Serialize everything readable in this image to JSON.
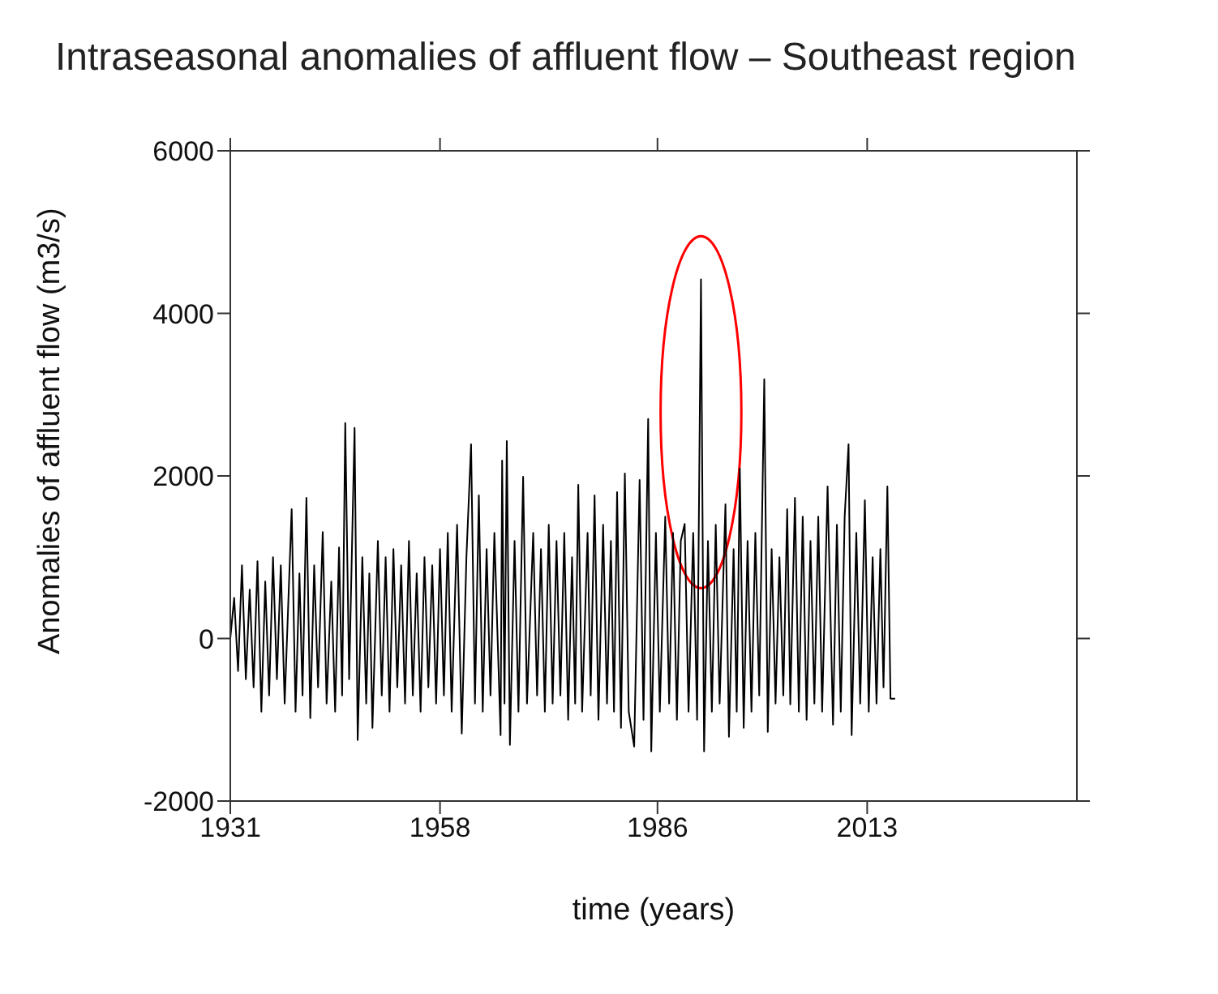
{
  "chart_data": {
    "type": "line",
    "title": "Intraseasonal anomalies of affluent flow – Southeast region",
    "xlabel": "time (years)",
    "ylabel": "Anomalies of affluent flow (m3/s)",
    "xlim": [
      1931,
      2040
    ],
    "xticks": [
      1931,
      1958,
      1986,
      2013
    ],
    "ylim": [
      -2000,
      6000
    ],
    "yticks": [
      -2000,
      0,
      2000,
      4000,
      6000
    ],
    "series": [
      {
        "color": "#000000",
        "x": [
          1931.0,
          1931.5,
          1932.0,
          1932.5,
          1933.0,
          1933.5,
          1934.0,
          1934.5,
          1935.0,
          1935.5,
          1936.0,
          1936.5,
          1937.0,
          1937.5,
          1938.0,
          1938.9,
          1939.4,
          1939.9,
          1940.3,
          1940.8,
          1941.3,
          1941.8,
          1942.3,
          1942.9,
          1943.4,
          1944.0,
          1944.5,
          1945.0,
          1945.4,
          1945.8,
          1946.3,
          1947.0,
          1947.4,
          1948.0,
          1948.5,
          1948.9,
          1949.3,
          1950.0,
          1950.5,
          1951.0,
          1951.5,
          1952.0,
          1952.5,
          1953.0,
          1953.5,
          1954.0,
          1954.5,
          1955.0,
          1955.5,
          1956.0,
          1956.5,
          1957.0,
          1957.5,
          1958.0,
          1958.5,
          1959.0,
          1959.5,
          1960.2,
          1960.8,
          1961.4,
          1962.0,
          1962.5,
          1963.0,
          1963.5,
          1964.0,
          1964.5,
          1965.0,
          1965.8,
          1966.0,
          1966.3,
          1966.6,
          1967.0,
          1967.6,
          1968.1,
          1968.7,
          1969.2,
          1970.0,
          1970.5,
          1971.0,
          1971.5,
          1972.0,
          1972.5,
          1973.0,
          1973.5,
          1974.0,
          1974.5,
          1975.0,
          1975.4,
          1975.8,
          1976.3,
          1977.0,
          1977.4,
          1977.9,
          1978.4,
          1979.0,
          1979.5,
          1980.0,
          1980.4,
          1980.8,
          1981.3,
          1981.8,
          1982.3,
          1983.0,
          1983.7,
          1984.2,
          1984.8,
          1985.2,
          1985.8,
          1986.3,
          1987.0,
          1987.5,
          1988.0,
          1988.5,
          1989.0,
          1989.5,
          1990.0,
          1990.6,
          1991.1,
          1991.6,
          1992.0,
          1992.5,
          1993.0,
          1993.5,
          1994.0,
          1994.75,
          1995.2,
          1995.8,
          1996.2,
          1996.6,
          1997.1,
          1997.6,
          1998.1,
          1998.6,
          1999.1,
          1999.75,
          2000.2,
          2000.7,
          2001.2,
          2001.7,
          2002.2,
          2002.7,
          2003.1,
          2003.7,
          2004.2,
          2004.7,
          2005.2,
          2005.7,
          2006.2,
          2006.7,
          2007.2,
          2007.9,
          2008.6,
          2009.1,
          2009.6,
          2010.1,
          2010.6,
          2011.0,
          2011.6,
          2012.1,
          2012.7,
          2013.2,
          2013.7,
          2014.2,
          2014.7,
          2015.1,
          2015.6,
          2016.0,
          2016.6
        ],
        "values": [
          0,
          500,
          -400,
          900,
          -500,
          600,
          -600,
          950,
          -900,
          700,
          -700,
          1000,
          -500,
          900,
          -800,
          1590,
          -900,
          800,
          -700,
          1730,
          -980,
          900,
          -600,
          1310,
          -800,
          700,
          -900,
          1120,
          -700,
          2650,
          -500,
          2590,
          -1250,
          1000,
          -800,
          800,
          -1100,
          1200,
          -700,
          1000,
          -900,
          1100,
          -600,
          900,
          -800,
          1200,
          -700,
          800,
          -900,
          1000,
          -600,
          900,
          -800,
          1100,
          -700,
          1300,
          -900,
          1400,
          -1170,
          1000,
          2390,
          -800,
          1760,
          -900,
          1100,
          -700,
          1300,
          -1190,
          2190,
          -800,
          2430,
          -1310,
          1200,
          -900,
          1990,
          -800,
          1300,
          -700,
          1100,
          -900,
          1400,
          -800,
          1200,
          -700,
          1300,
          -1000,
          1000,
          -800,
          1890,
          -900,
          1300,
          -700,
          1760,
          -1000,
          1400,
          -800,
          1200,
          -900,
          1800,
          -1100,
          2030,
          -900,
          -1330,
          1950,
          -1000,
          2700,
          -1390,
          1300,
          -900,
          1500,
          -800,
          1300,
          -1000,
          1200,
          1410,
          -900,
          1300,
          -1000,
          4420,
          -1390,
          1200,
          -900,
          1400,
          -800,
          1650,
          -1210,
          1100,
          -900,
          2090,
          -1100,
          1200,
          -900,
          1300,
          -700,
          3190,
          -1150,
          1100,
          -800,
          1000,
          -700,
          1590,
          -810,
          1730,
          -900,
          1500,
          -1000,
          1200,
          -800,
          1500,
          -900,
          1870,
          -1060,
          1400,
          -900,
          1500,
          2390,
          -1190,
          1300,
          -800,
          1700,
          -900,
          1000,
          -800,
          1100,
          -600,
          1870,
          -740,
          -740
        ]
      }
    ]
  }
}
